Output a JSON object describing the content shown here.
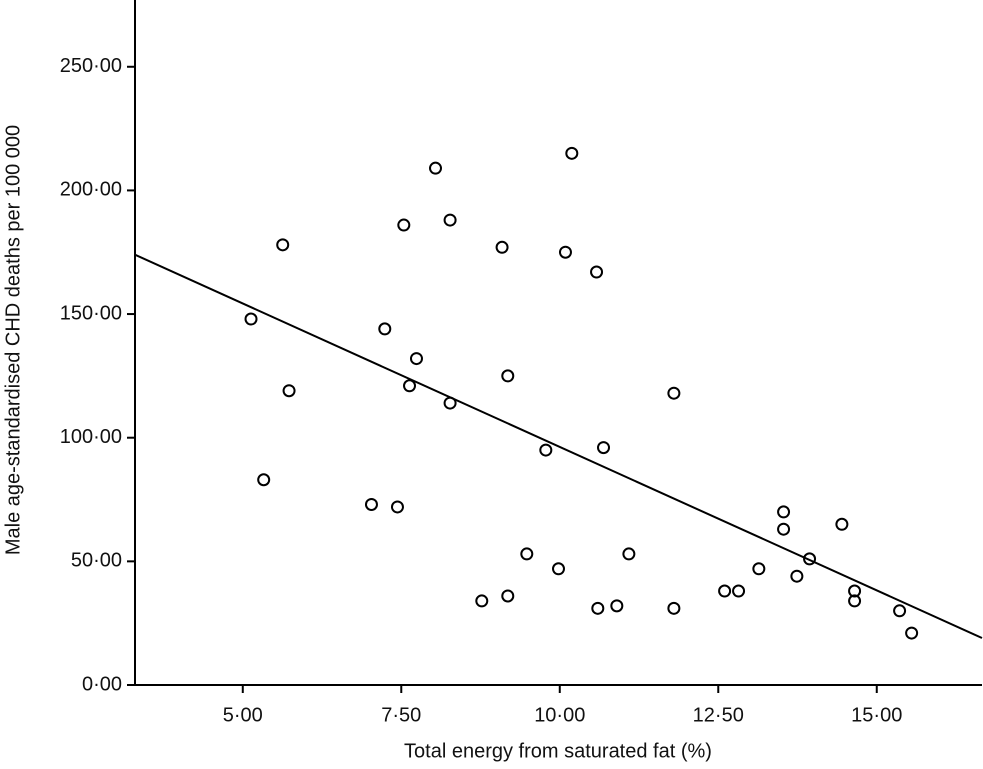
{
  "chart_data": {
    "type": "scatter",
    "x_label": "Total energy from saturated fat (%)",
    "y_label": "Male age-standardised CHD deaths per 100 000",
    "x": [
      5.13,
      5.63,
      5.73,
      5.33,
      7.03,
      7.44,
      7.24,
      7.54,
      7.63,
      7.74,
      8.04,
      8.27,
      8.27,
      8.77,
      9.09,
      9.18,
      9.18,
      9.48,
      9.78,
      9.98,
      10.09,
      10.19,
      10.58,
      10.6,
      10.69,
      10.9,
      11.09,
      11.8,
      11.8,
      12.6,
      12.82,
      13.14,
      13.53,
      13.53,
      13.74,
      13.94,
      14.45,
      14.65,
      14.65,
      15.36,
      15.55
    ],
    "values": [
      148,
      178,
      119,
      83,
      73,
      72,
      144,
      186,
      121,
      132,
      209,
      188,
      114,
      34,
      177,
      125,
      36,
      53,
      95,
      47,
      175,
      215,
      167,
      31,
      96,
      32,
      53,
      118,
      31,
      38,
      38,
      47,
      70,
      63,
      44,
      51,
      65,
      38,
      34,
      30,
      21
    ],
    "color": "#000000",
    "fit_line": {
      "x": [
        3.3,
        16.66
      ],
      "y": [
        174,
        19
      ],
      "color": "#000000"
    },
    "xlim": [
      3.3,
      16.66
    ],
    "ylim": [
      0,
      277
    ],
    "xticks": [
      {
        "value": 5,
        "label": "5·00"
      },
      {
        "value": 7.5,
        "label": "7·50"
      },
      {
        "value": 10,
        "label": "10·00"
      },
      {
        "value": 12.5,
        "label": "12·50"
      },
      {
        "value": 15,
        "label": "15·00"
      }
    ],
    "yticks": [
      {
        "value": 0,
        "label": "0·00"
      },
      {
        "value": 50,
        "label": "50·00"
      },
      {
        "value": 100,
        "label": "100·00"
      },
      {
        "value": 150,
        "label": "150·00"
      },
      {
        "value": 200,
        "label": "200·00"
      },
      {
        "value": 250,
        "label": "250·00"
      }
    ]
  }
}
